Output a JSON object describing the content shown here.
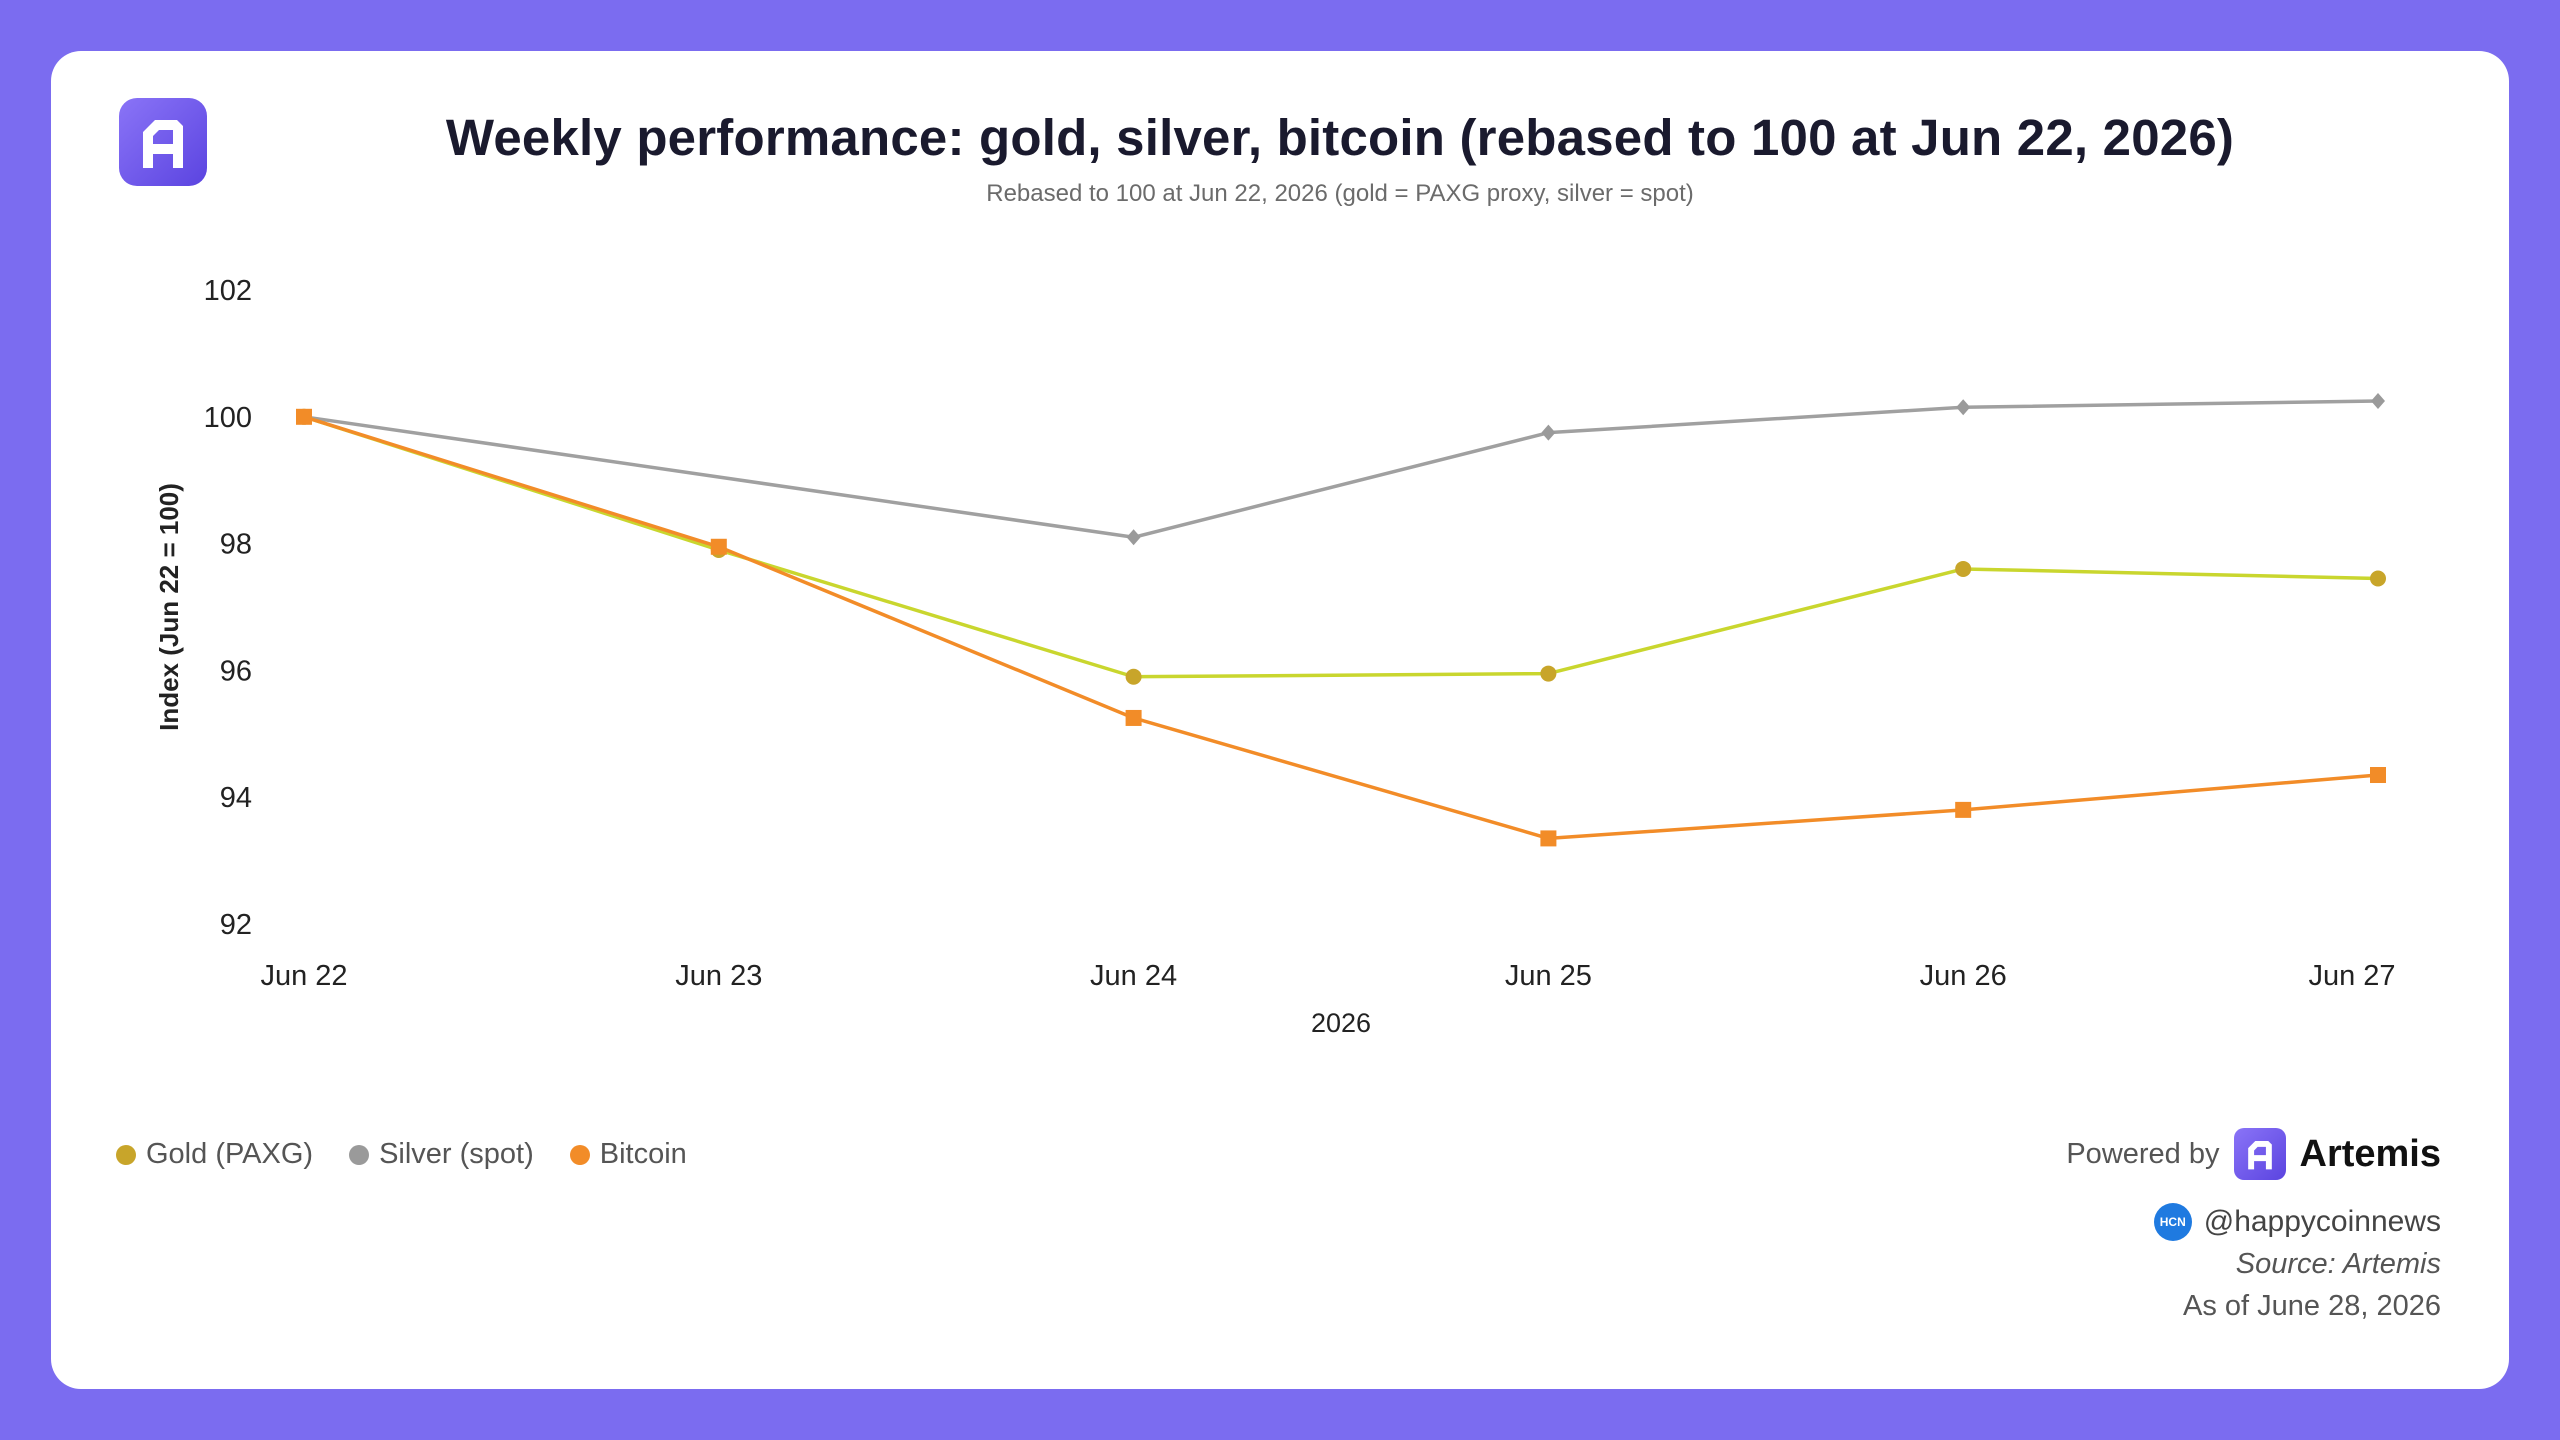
{
  "brand": {
    "name": "Artemis",
    "powered_by": "Powered by",
    "color": "#6c55ee",
    "logo_icon": "artemis-logo-icon"
  },
  "footer": {
    "handle": "@happycoinnews",
    "handle_badge": "HCN",
    "source": "Source: Artemis",
    "as_of": "As of June 28, 2026"
  },
  "chart_data": {
    "type": "line",
    "title": "Weekly performance: gold, silver, bitcoin (rebased to 100 at Jun 22, 2026)",
    "subtitle": "Rebased to 100 at Jun 22, 2026 (gold = PAXG proxy, silver = spot)",
    "xlabel": "2026",
    "ylabel": "Index (Jun 22 = 100)",
    "categories": [
      "Jun 22",
      "Jun 23",
      "Jun 24",
      "Jun 25",
      "Jun 26",
      "Jun 27"
    ],
    "ylim": [
      92,
      102
    ],
    "yticks": [
      92,
      94,
      96,
      98,
      100,
      102
    ],
    "grid": false,
    "legend_position": "bottom-left",
    "series": [
      {
        "name": "Gold (PAXG)",
        "color": "#c9d62e",
        "marker_color": "#c8a52a",
        "marker": "circle",
        "values": [
          100,
          97.9,
          95.9,
          95.95,
          97.6,
          97.45
        ]
      },
      {
        "name": "Silver (spot)",
        "color": "#a0a0a0",
        "marker_color": "#9a9a9a",
        "marker": "diamond",
        "values": [
          100,
          null,
          98.1,
          99.75,
          100.15,
          100.25
        ]
      },
      {
        "name": "Bitcoin",
        "color": "#f28c28",
        "marker_color": "#f28c28",
        "marker": "square",
        "values": [
          100,
          97.95,
          95.25,
          93.35,
          93.8,
          94.35
        ]
      }
    ]
  }
}
